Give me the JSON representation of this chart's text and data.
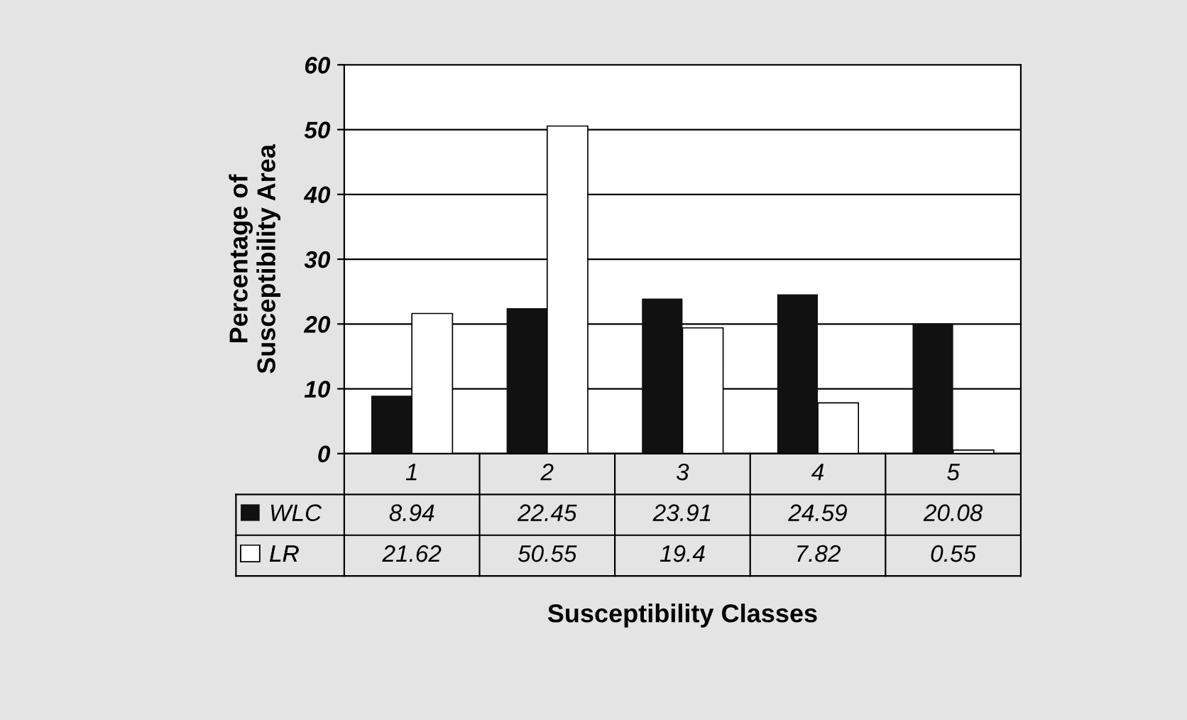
{
  "chart_data": {
    "type": "bar",
    "categories": [
      "1",
      "2",
      "3",
      "4",
      "5"
    ],
    "series": [
      {
        "name": "WLC",
        "color": "#111111",
        "values": [
          8.94,
          22.45,
          23.91,
          24.59,
          20.08
        ]
      },
      {
        "name": "LR",
        "color": "#ffffff",
        "values": [
          21.62,
          50.55,
          19.4,
          7.82,
          0.55
        ]
      }
    ],
    "ylim": [
      0,
      60
    ],
    "yticks": [
      0,
      10,
      20,
      30,
      40,
      50,
      60
    ],
    "grid": "y",
    "ylabel": "Percentage of\nSusceptibility Area",
    "xlabel": "Susceptibility Classes",
    "data_labels": true,
    "tick_labels": "y",
    "legend": "bottom"
  }
}
